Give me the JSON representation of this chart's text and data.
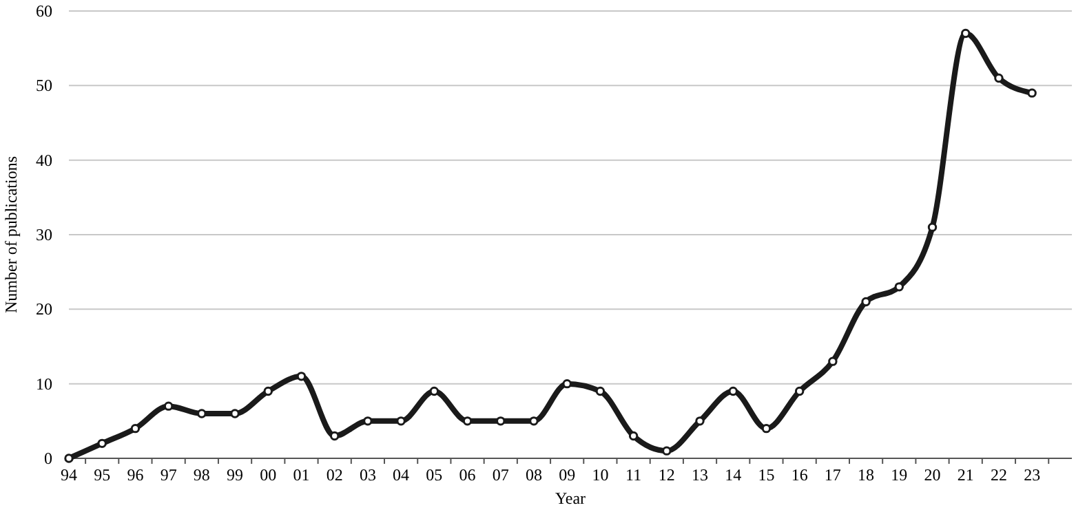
{
  "chart_data": {
    "type": "line",
    "xlabel": "Year",
    "ylabel": "Number of publications",
    "categories": [
      "94",
      "95",
      "96",
      "97",
      "98",
      "99",
      "00",
      "01",
      "02",
      "03",
      "04",
      "05",
      "06",
      "07",
      "08",
      "09",
      "10",
      "11",
      "12",
      "13",
      "14",
      "15",
      "16",
      "17",
      "18",
      "19",
      "20",
      "21",
      "22",
      "23"
    ],
    "series": [
      {
        "color": "#1a1a1a",
        "values": [
          0,
          2,
          4,
          7,
          6,
          6,
          9,
          11,
          3,
          5,
          5,
          9,
          5,
          5,
          5,
          10,
          9,
          3,
          1,
          5,
          9,
          4,
          9,
          13,
          21,
          23,
          31,
          57,
          51,
          49
        ]
      }
    ],
    "ylim": [
      0,
      60
    ],
    "yticks": [
      0,
      10,
      20,
      30,
      40,
      50,
      60
    ],
    "grid": "y",
    "marker": "circle",
    "line_style": "solid"
  }
}
